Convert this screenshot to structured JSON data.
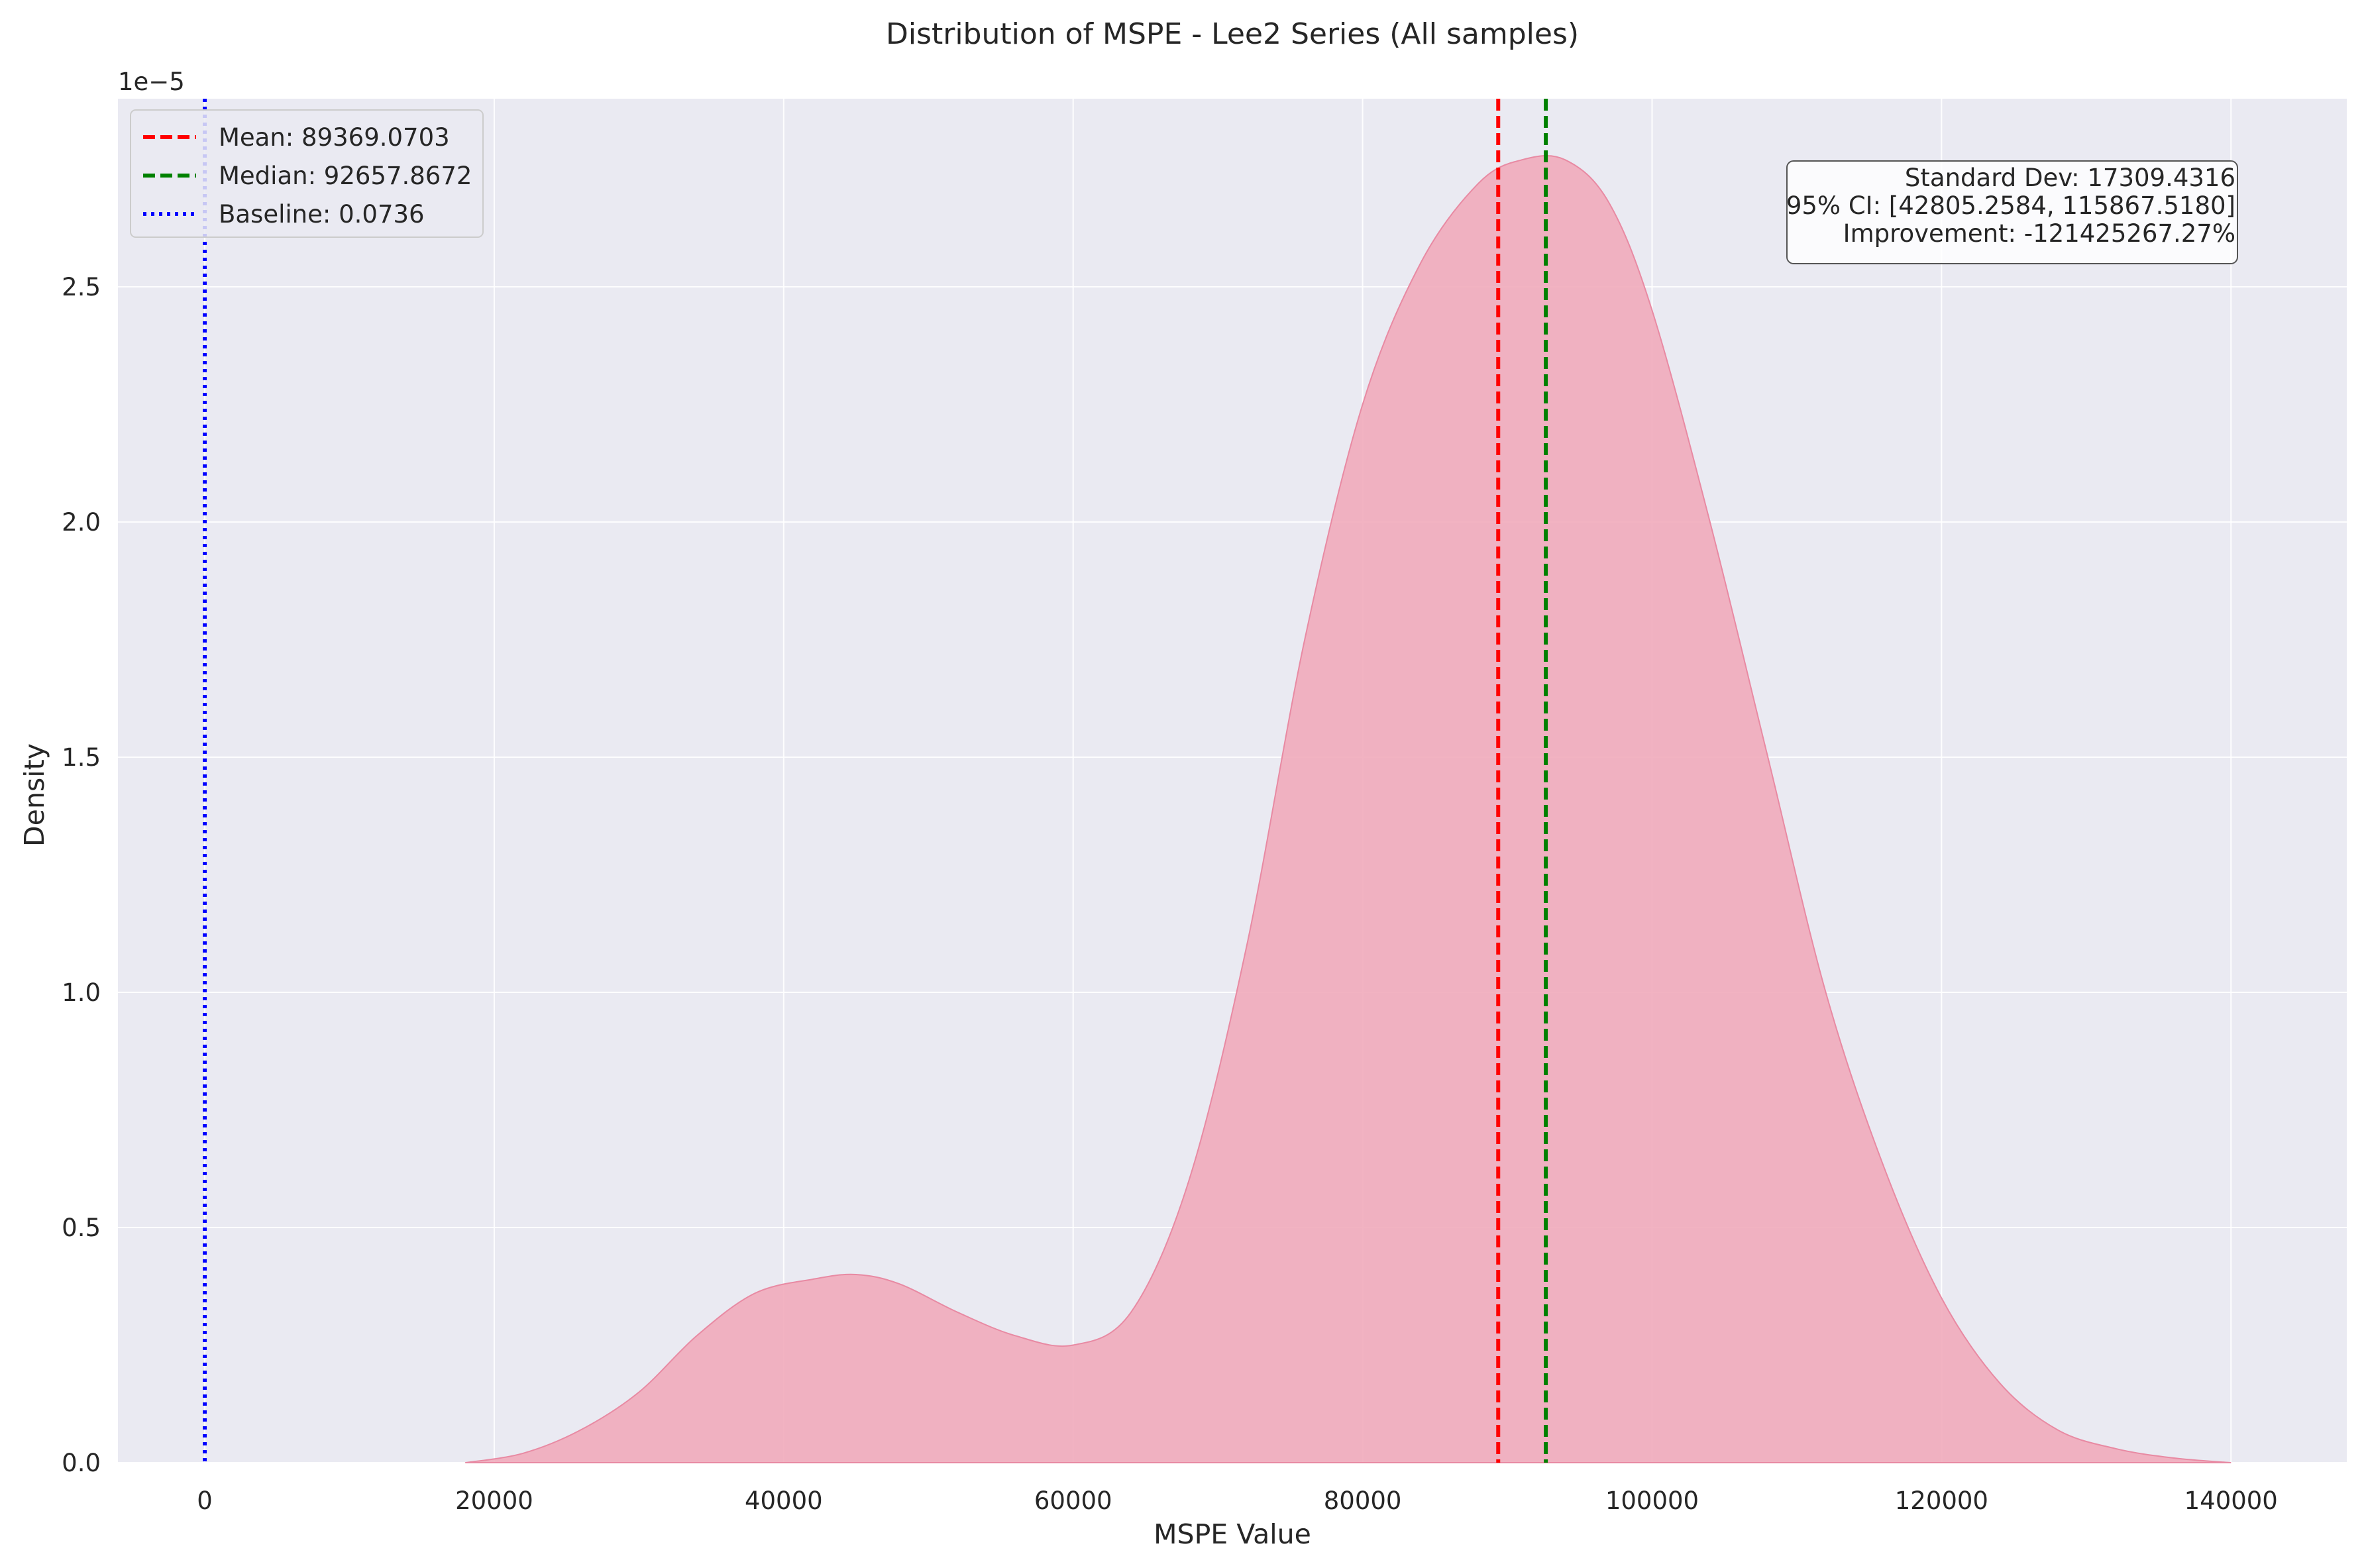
{
  "chart_data": {
    "type": "area",
    "title": "Distribution of MSPE - Lee2 Series (All samples)",
    "xlabel": "MSPE Value",
    "ylabel": "Density",
    "y_scale_label": "1e−5",
    "xlim": [
      -6000,
      148000
    ],
    "ylim": [
      0,
      2.9
    ],
    "x_ticks": [
      0,
      20000,
      40000,
      60000,
      80000,
      100000,
      120000,
      140000
    ],
    "y_ticks": [
      0.0,
      0.5,
      1.0,
      1.5,
      2.0,
      2.5
    ],
    "x_tick_labels": [
      "0",
      "20000",
      "40000",
      "60000",
      "80000",
      "100000",
      "120000",
      "140000"
    ],
    "y_tick_labels": [
      "0.0",
      "0.5",
      "1.0",
      "1.5",
      "2.0",
      "2.5"
    ],
    "grid": true,
    "series": [
      {
        "name": "",
        "color": "#f0a9b9",
        "x": [
          18000,
          22000,
          26000,
          30000,
          34000,
          38000,
          42000,
          45000,
          48000,
          52000,
          56000,
          60000,
          64000,
          68000,
          72000,
          76000,
          80000,
          84000,
          88000,
          91000,
          94000,
          97000,
          100000,
          104000,
          108000,
          112000,
          116000,
          120000,
          124000,
          128000,
          132000,
          136000,
          140000
        ],
        "y": [
          0.0,
          0.02,
          0.07,
          0.15,
          0.27,
          0.36,
          0.39,
          0.4,
          0.38,
          0.32,
          0.27,
          0.25,
          0.32,
          0.6,
          1.1,
          1.75,
          2.25,
          2.55,
          2.72,
          2.77,
          2.77,
          2.68,
          2.45,
          2.0,
          1.5,
          1.0,
          0.63,
          0.35,
          0.17,
          0.07,
          0.03,
          0.01,
          0.0
        ]
      }
    ],
    "reference_lines": [
      {
        "label": "Mean: 89369.0703",
        "x": 89369.0703,
        "color": "#ff0000",
        "style": "dashed"
      },
      {
        "label": "Median: 92657.8672",
        "x": 92657.8672,
        "color": "#008000",
        "style": "dashed"
      },
      {
        "label": "Baseline: 0.0736",
        "x": 0.0736,
        "color": "#0000ff",
        "style": "dotted"
      }
    ],
    "legend_position": "top-left",
    "stats_box": {
      "position": "top-right",
      "lines": [
        "Standard Dev: 17309.4316",
        "95% CI: [42805.2584, 115867.5180]",
        "Improvement: -121425267.27%"
      ]
    }
  }
}
